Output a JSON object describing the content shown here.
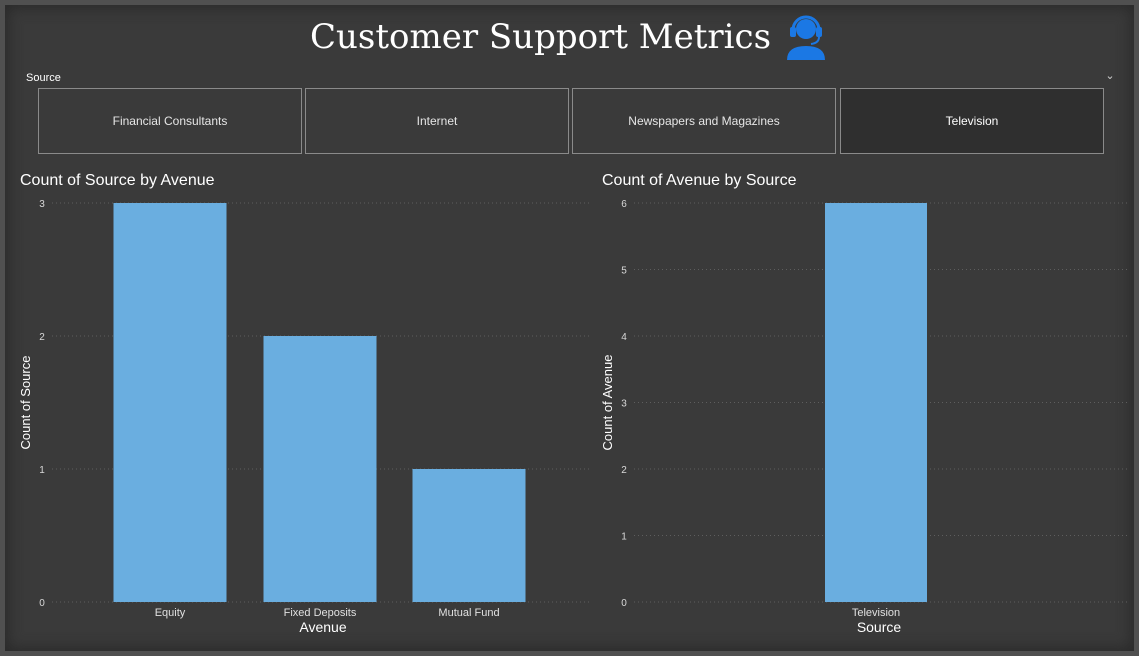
{
  "page": {
    "title": "Customer Support Metrics",
    "title_icon": "headset-user-icon",
    "accent_color": "#1b78e4",
    "bar_color": "#6aaee0",
    "background_color": "#3a3a3a"
  },
  "slicer": {
    "label": "Source",
    "chevron": "⌄",
    "options": [
      {
        "label": "Financial Consultants",
        "selected": false
      },
      {
        "label": "Internet",
        "selected": false
      },
      {
        "label": "Newspapers and Magazines",
        "selected": false
      },
      {
        "label": "Television",
        "selected": true
      }
    ]
  },
  "chart_data": [
    {
      "type": "bar",
      "title": "Count of Source by Avenue",
      "xlabel": "Avenue",
      "ylabel": "Count of Source",
      "categories": [
        "Equity",
        "Fixed Deposits",
        "Mutual Fund"
      ],
      "values": [
        3,
        2,
        1
      ],
      "ylim": [
        0,
        3
      ],
      "yticks": [
        "0",
        "1",
        "2",
        "3"
      ],
      "grid": true
    },
    {
      "type": "bar",
      "title": "Count of Avenue by Source",
      "xlabel": "Source",
      "ylabel": "Count of Avenue",
      "categories": [
        "Television"
      ],
      "values": [
        6
      ],
      "ylim": [
        0,
        6
      ],
      "yticks": [
        "0",
        "1",
        "2",
        "3",
        "4",
        "5",
        "6"
      ],
      "grid": true
    }
  ]
}
